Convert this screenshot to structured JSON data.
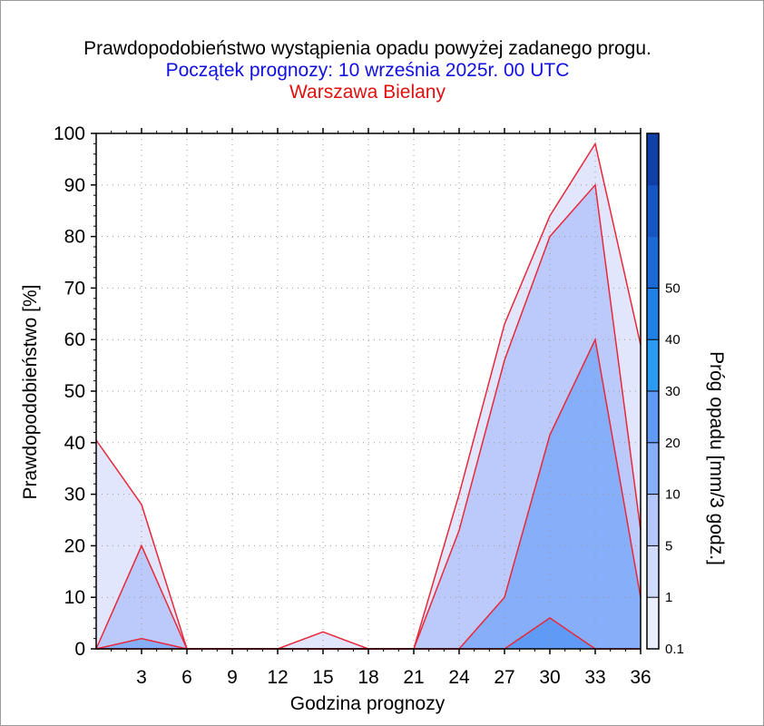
{
  "chart_data": {
    "type": "area",
    "title": "Prawdopodobieństwo wystąpienia opadu powyżej zadanego progu.",
    "subtitle": "Początek prognozy: 10 września 2025r. 00 UTC",
    "location": "Warszawa Bielany",
    "xlabel": "Godzina prognozy",
    "ylabel": "Prawdopodobieństwo [%]",
    "colorbar_label": "Próg opadu [mm/3 godz.]",
    "xlim": [
      0,
      36
    ],
    "ylim": [
      0,
      100
    ],
    "x_ticks": [
      "3",
      "6",
      "9",
      "12",
      "15",
      "18",
      "21",
      "24",
      "27",
      "30",
      "33",
      "36"
    ],
    "y_ticks": [
      "0",
      "10",
      "20",
      "30",
      "40",
      "50",
      "60",
      "70",
      "80",
      "90",
      "100"
    ],
    "grid": true,
    "x": [
      0,
      3,
      6,
      9,
      12,
      15,
      18,
      21,
      24,
      27,
      30,
      33,
      36
    ],
    "series": [
      {
        "threshold": "0.1",
        "color": "#e1e6fc",
        "values": [
          40.5,
          28,
          0,
          0,
          0,
          3.3,
          0,
          0,
          30,
          63,
          84,
          98,
          59
        ]
      },
      {
        "threshold": "1",
        "color": "#bccafb",
        "values": [
          0,
          20,
          0,
          0,
          0,
          0,
          0,
          0,
          23,
          56,
          80,
          90,
          23
        ]
      },
      {
        "threshold": "5",
        "color": "#86aef9",
        "values": [
          0,
          2,
          0,
          0,
          0,
          0,
          0,
          0,
          0,
          10,
          41.5,
          60,
          10
        ]
      },
      {
        "threshold": "10",
        "color": "#5f9af6",
        "values": [
          0,
          0,
          0,
          0,
          0,
          0,
          0,
          0,
          0,
          0,
          6,
          0,
          0
        ]
      }
    ],
    "colorbar": {
      "labels": [
        "0.1",
        "1",
        "5",
        "10",
        "20",
        "30",
        "40",
        "50"
      ],
      "colors": [
        "#eaedfd",
        "#d0dafb",
        "#b4c6fa",
        "#86aef9",
        "#5f9af6",
        "#2a9af2",
        "#1f80e8",
        "#1a6ad8",
        "#1556c4",
        "#0f40a8"
      ]
    }
  }
}
